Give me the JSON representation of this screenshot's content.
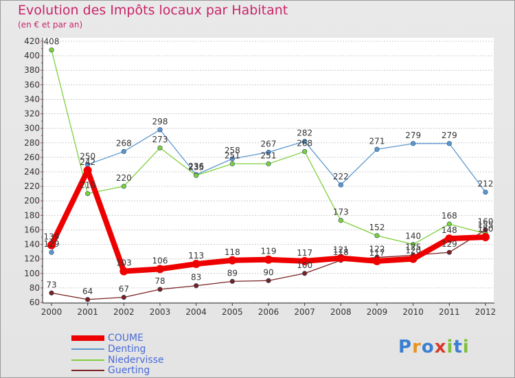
{
  "chart_data": {
    "type": "line",
    "title": "Evolution des Impôts locaux par Habitant",
    "subtitle": "(en € et par an)",
    "categories": [
      "2000",
      "2001",
      "2002",
      "2003",
      "2004",
      "2005",
      "2006",
      "2007",
      "2008",
      "2009",
      "2010",
      "2011",
      "2012"
    ],
    "ylim": [
      60,
      420
    ],
    "yticks": [
      60,
      80,
      100,
      120,
      140,
      160,
      180,
      200,
      220,
      240,
      260,
      280,
      300,
      320,
      340,
      360,
      380,
      400,
      420
    ],
    "series": [
      {
        "name": "COUME",
        "color": "#ee0000",
        "values": [
          139,
          242,
          103,
          106,
          113,
          118,
          119,
          117,
          121,
          117,
          120,
          148,
          150
        ]
      },
      {
        "name": "Denting",
        "color": "#5b97cf",
        "values": [
          129,
          250,
          268,
          298,
          236,
          258,
          267,
          282,
          222,
          271,
          279,
          279,
          212
        ]
      },
      {
        "name": "Niedervisse",
        "color": "#7fcf3c",
        "values": [
          408,
          210,
          220,
          273,
          235,
          251,
          251,
          268,
          173,
          152,
          140,
          168,
          155
        ]
      },
      {
        "name": "Guerting",
        "color": "#7a2020",
        "values": [
          73,
          64,
          67,
          78,
          83,
          89,
          90,
          100,
          118,
          122,
          125,
          129,
          160
        ]
      }
    ],
    "legend_position": "bottom-left"
  },
  "logo": {
    "text": "Proxiti"
  }
}
